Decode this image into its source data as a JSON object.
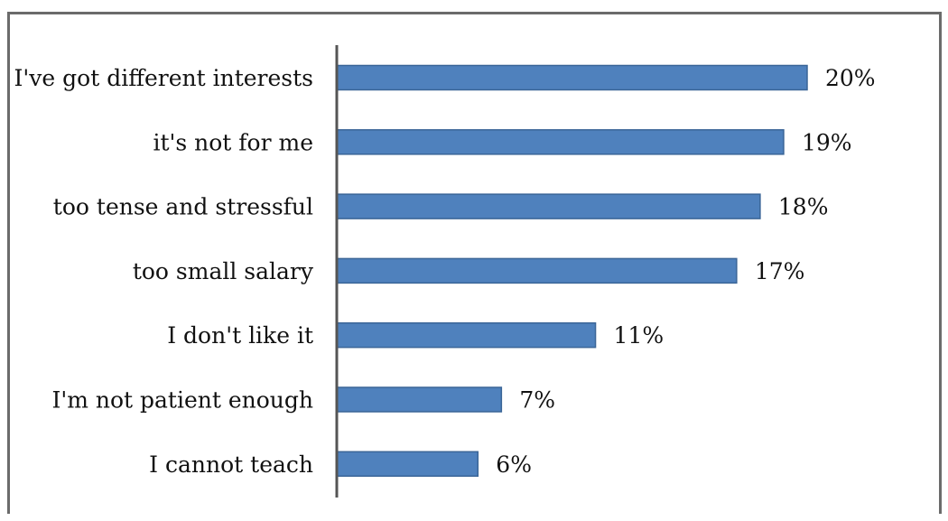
{
  "chart_data": {
    "type": "bar",
    "orientation": "horizontal",
    "categories": [
      "I've got different interests",
      "it's not for me",
      "too tense and stressful",
      "too small salary",
      "I don't like it",
      "I'm not patient enough",
      "I cannot teach"
    ],
    "values": [
      20,
      19,
      18,
      17,
      11,
      7,
      6
    ],
    "value_labels": [
      "20%",
      "19%",
      "18%",
      "17%",
      "11%",
      "7%",
      "6%"
    ],
    "title": "",
    "xlabel": "",
    "ylabel": "",
    "xlim": [
      0,
      20
    ],
    "grid": false,
    "legend": "none",
    "colors": {
      "bar_fill": "#4f81bd",
      "bar_stroke": "#3a6597",
      "axis": "#555555"
    }
  }
}
